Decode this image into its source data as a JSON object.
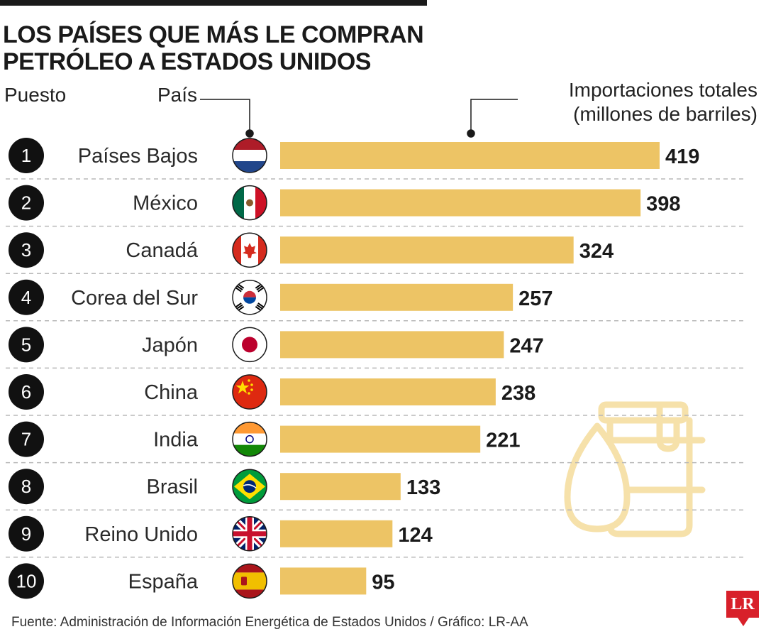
{
  "title": "LOS PAÍSES QUE MÁS LE COMPRAN PETRÓLEO A ESTADOS UNIDOS",
  "headers": {
    "rank": "Puesto",
    "country": "País",
    "value": "Importaciones totales (millones de barriles)"
  },
  "source": "Fuente: Administración de Información Energética de Estados Unidos / Gráfico: LR-AA",
  "logo": "LR",
  "colors": {
    "bar": "#edc465",
    "text": "#1a1a1a",
    "badge": "#111111",
    "icon": "#f6e1aa"
  },
  "chart_data": {
    "type": "bar",
    "orientation": "horizontal",
    "title": "LOS PAÍSES QUE MÁS LE COMPRAN PETRÓLEO A ESTADOS UNIDOS",
    "xlabel": "Importaciones totales (millones de barriles)",
    "categories": [
      "Países Bajos",
      "México",
      "Canadá",
      "Corea del Sur",
      "Japón",
      "China",
      "India",
      "Brasil",
      "Reino Unido",
      "España"
    ],
    "ranks": [
      "1",
      "2",
      "3",
      "4",
      "5",
      "6",
      "7",
      "8",
      "9",
      "10"
    ],
    "values": [
      419,
      398,
      324,
      257,
      247,
      238,
      221,
      133,
      124,
      95
    ],
    "flags": [
      "netherlands-flag",
      "mexico-flag",
      "canada-flag",
      "south-korea-flag",
      "japan-flag",
      "china-flag",
      "india-flag",
      "brazil-flag",
      "united-kingdom-flag",
      "spain-flag"
    ],
    "xlim": [
      0,
      419
    ],
    "grid": false,
    "legend": "none"
  }
}
